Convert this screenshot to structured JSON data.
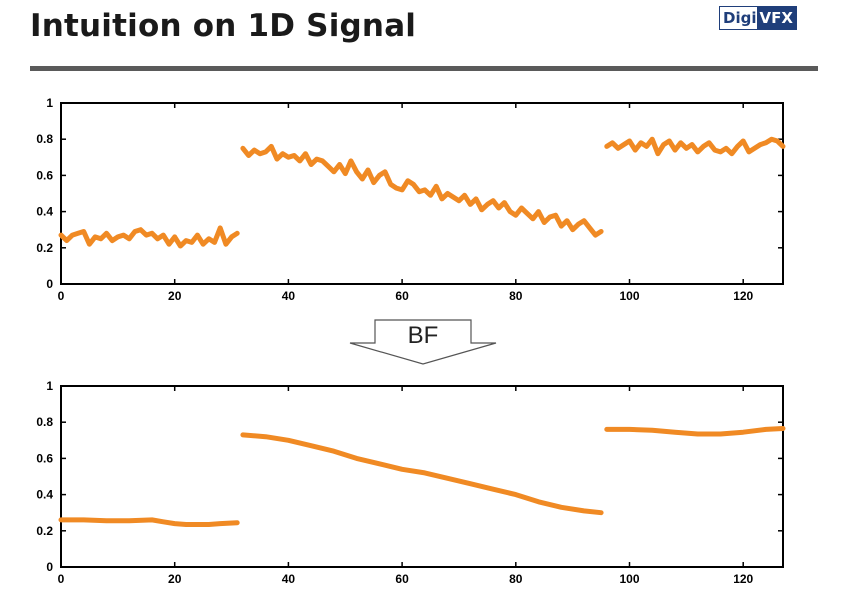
{
  "slide": {
    "title": "Intuition on 1D Signal",
    "logo": {
      "part1": "Digi",
      "part2": "VFX"
    },
    "arrow_label": "BF"
  },
  "colors": {
    "series": "#f08a24",
    "rule": "#5a5a5a",
    "logo": "#1f3e7a"
  },
  "chart_data": [
    {
      "type": "line",
      "xlim": [
        0,
        127
      ],
      "ylim": [
        0,
        1
      ],
      "xticks": [
        0,
        20,
        40,
        60,
        80,
        100,
        120
      ],
      "yticks": [
        0,
        0.2,
        0.4,
        0.6,
        0.8,
        1
      ],
      "xtick_labels": [
        "0",
        "20",
        "40",
        "60",
        "80",
        "100",
        "120"
      ],
      "ytick_labels": [
        "0",
        "0.2",
        "0.4",
        "0.6",
        "0.8",
        "1"
      ],
      "grid": false,
      "series": [
        {
          "x": [
            0,
            1,
            2,
            3,
            4,
            5,
            6,
            7,
            8,
            9,
            10,
            11,
            12,
            13,
            14,
            15,
            16,
            17,
            18,
            19,
            20,
            21,
            22,
            23,
            24,
            25,
            26,
            27,
            28,
            29,
            30,
            31
          ],
          "y": [
            0.27,
            0.24,
            0.27,
            0.28,
            0.29,
            0.22,
            0.26,
            0.25,
            0.28,
            0.24,
            0.26,
            0.27,
            0.25,
            0.29,
            0.3,
            0.27,
            0.28,
            0.25,
            0.27,
            0.22,
            0.26,
            0.21,
            0.24,
            0.23,
            0.27,
            0.22,
            0.25,
            0.23,
            0.31,
            0.22,
            0.26,
            0.28
          ]
        },
        {
          "x": [
            32,
            33,
            34,
            35,
            36,
            37,
            38,
            39,
            40,
            41,
            42,
            43,
            44,
            45,
            46,
            47,
            48,
            49,
            50,
            51,
            52,
            53,
            54,
            55,
            56,
            57,
            58,
            59,
            60,
            61,
            62,
            63,
            64,
            65,
            66,
            67,
            68,
            69,
            70,
            71,
            72,
            73,
            74,
            75,
            76,
            77,
            78,
            79,
            80,
            81,
            82,
            83,
            84,
            85,
            86,
            87,
            88,
            89,
            90,
            91,
            92,
            93,
            94,
            95
          ],
          "y": [
            0.75,
            0.71,
            0.74,
            0.72,
            0.73,
            0.76,
            0.69,
            0.72,
            0.7,
            0.71,
            0.68,
            0.72,
            0.66,
            0.69,
            0.68,
            0.65,
            0.62,
            0.66,
            0.61,
            0.68,
            0.62,
            0.58,
            0.63,
            0.56,
            0.6,
            0.62,
            0.55,
            0.53,
            0.52,
            0.57,
            0.55,
            0.51,
            0.52,
            0.49,
            0.54,
            0.47,
            0.5,
            0.48,
            0.46,
            0.49,
            0.44,
            0.47,
            0.41,
            0.44,
            0.46,
            0.42,
            0.45,
            0.4,
            0.38,
            0.42,
            0.39,
            0.36,
            0.4,
            0.34,
            0.37,
            0.38,
            0.32,
            0.35,
            0.3,
            0.33,
            0.35,
            0.31,
            0.27,
            0.29
          ]
        },
        {
          "x": [
            96,
            97,
            98,
            99,
            100,
            101,
            102,
            103,
            104,
            105,
            106,
            107,
            108,
            109,
            110,
            111,
            112,
            113,
            114,
            115,
            116,
            117,
            118,
            119,
            120,
            121,
            122,
            123,
            124,
            125,
            126,
            127
          ],
          "y": [
            0.76,
            0.78,
            0.75,
            0.77,
            0.79,
            0.74,
            0.78,
            0.76,
            0.8,
            0.72,
            0.77,
            0.79,
            0.74,
            0.78,
            0.75,
            0.77,
            0.73,
            0.76,
            0.78,
            0.74,
            0.73,
            0.75,
            0.72,
            0.76,
            0.79,
            0.73,
            0.75,
            0.77,
            0.78,
            0.8,
            0.79,
            0.76
          ]
        }
      ]
    },
    {
      "type": "line",
      "xlim": [
        0,
        127
      ],
      "ylim": [
        0,
        1
      ],
      "xticks": [
        0,
        20,
        40,
        60,
        80,
        100,
        120
      ],
      "yticks": [
        0,
        0.2,
        0.4,
        0.6,
        0.8,
        1
      ],
      "xtick_labels": [
        "0",
        "20",
        "40",
        "60",
        "80",
        "100",
        "120"
      ],
      "ytick_labels": [
        "0",
        "0.2",
        "0.4",
        "0.6",
        "0.8",
        "1"
      ],
      "grid": false,
      "series": [
        {
          "x": [
            0,
            4,
            8,
            12,
            16,
            18,
            20,
            22,
            24,
            26,
            28,
            31
          ],
          "y": [
            0.26,
            0.26,
            0.255,
            0.255,
            0.26,
            0.25,
            0.24,
            0.235,
            0.235,
            0.235,
            0.24,
            0.245
          ]
        },
        {
          "x": [
            32,
            36,
            40,
            44,
            48,
            52,
            56,
            60,
            64,
            68,
            72,
            76,
            80,
            84,
            88,
            92,
            95
          ],
          "y": [
            0.73,
            0.72,
            0.7,
            0.67,
            0.64,
            0.6,
            0.57,
            0.54,
            0.52,
            0.49,
            0.46,
            0.43,
            0.4,
            0.36,
            0.33,
            0.31,
            0.3
          ]
        },
        {
          "x": [
            96,
            100,
            104,
            108,
            112,
            116,
            120,
            124,
            127
          ],
          "y": [
            0.76,
            0.76,
            0.755,
            0.745,
            0.735,
            0.735,
            0.745,
            0.76,
            0.765
          ]
        }
      ]
    }
  ]
}
